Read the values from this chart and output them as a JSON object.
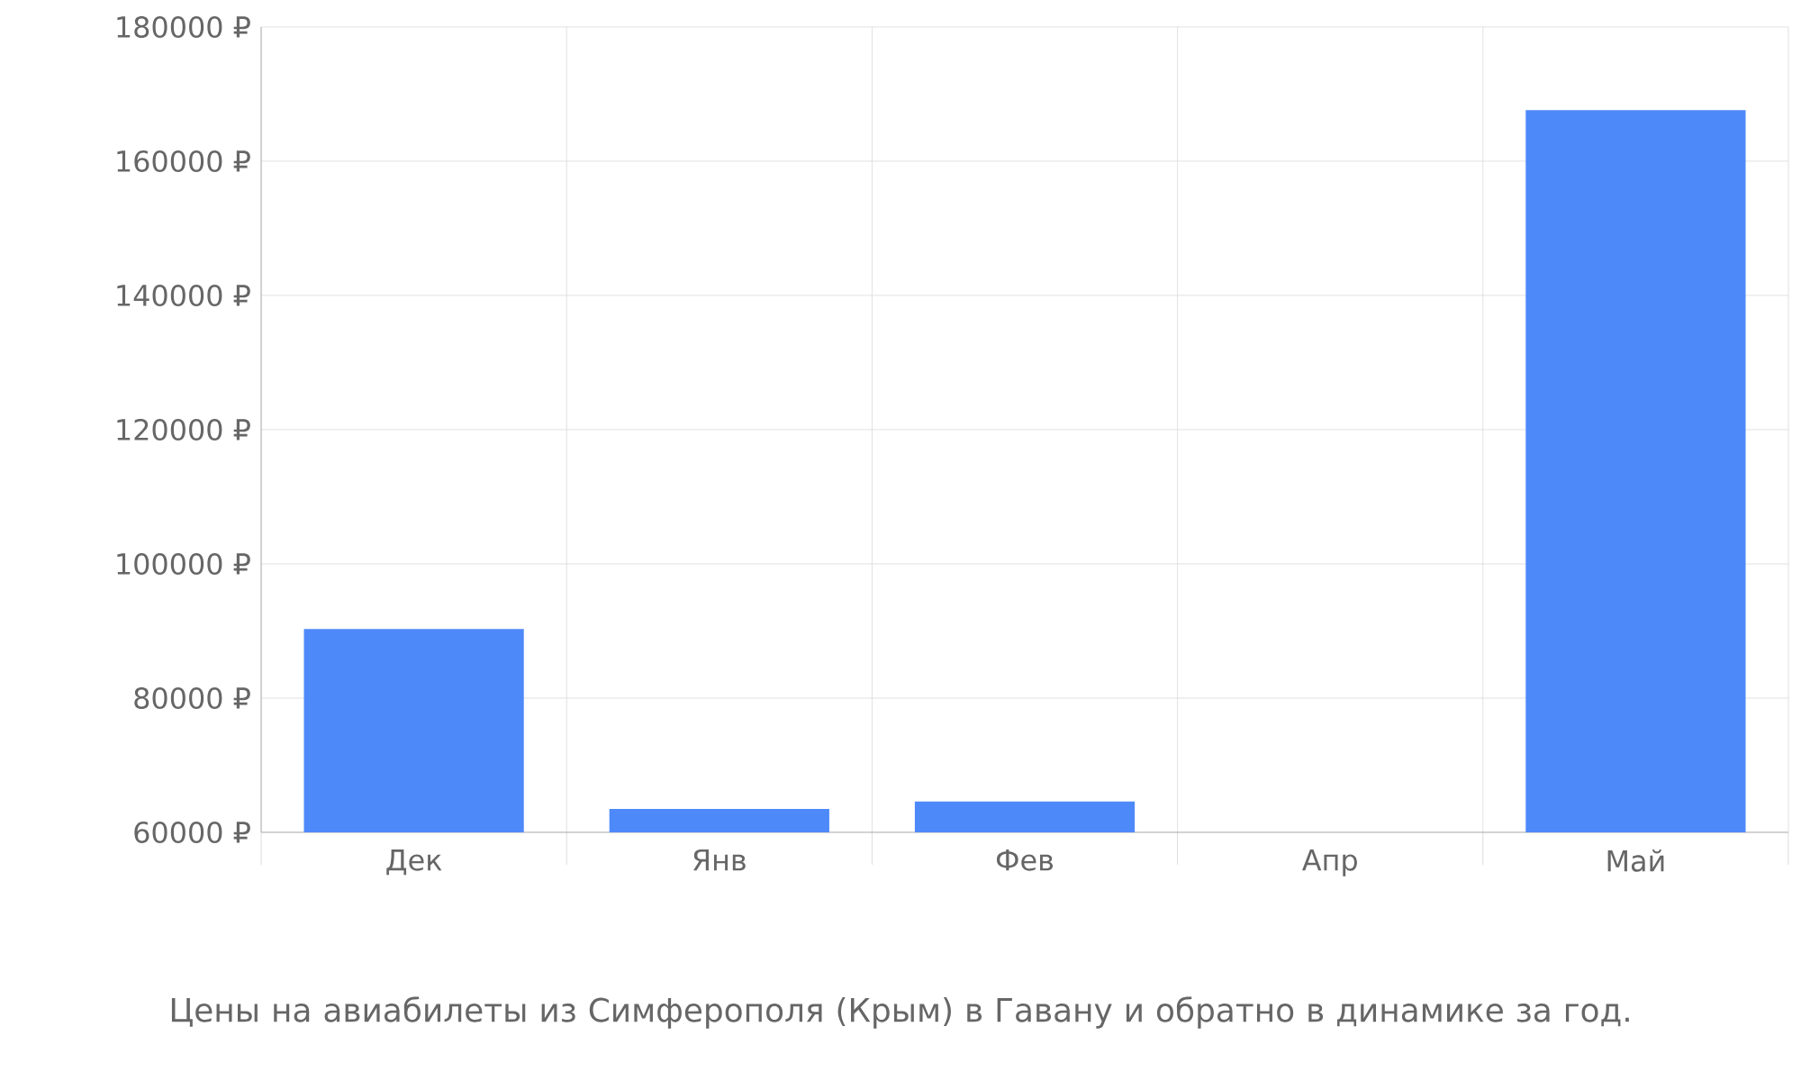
{
  "chart_data": {
    "type": "bar",
    "title": "Цены на авиабилеты из Симферополя (Крым) в Гавану и обратно в динамике за год.",
    "categories": [
      "Дек",
      "Янв",
      "Фев",
      "Апр",
      "Май"
    ],
    "values": [
      90300,
      63500,
      64600,
      null,
      167600
    ],
    "color": "#4e89fa",
    "ylim": [
      60000,
      180000
    ],
    "yticks": [
      {
        "value": 60000,
        "label": "60000 ₽"
      },
      {
        "value": 80000,
        "label": "80000 ₽"
      },
      {
        "value": 100000,
        "label": "100000 ₽"
      },
      {
        "value": 120000,
        "label": "120000 ₽"
      },
      {
        "value": 140000,
        "label": "140000 ₽"
      },
      {
        "value": 160000,
        "label": "160000 ₽"
      },
      {
        "value": 180000,
        "label": "180000 ₽"
      }
    ],
    "grid": true
  }
}
